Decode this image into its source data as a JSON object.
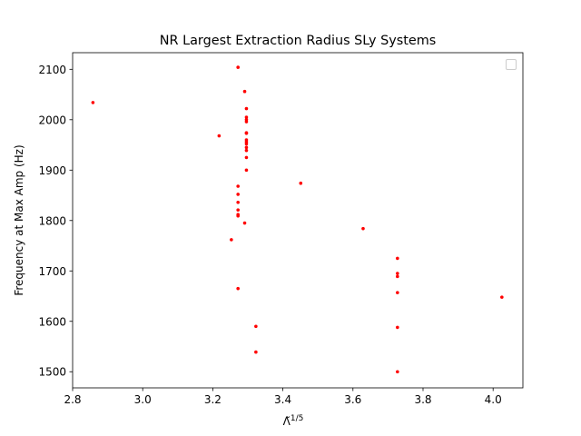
{
  "chart_data": {
    "type": "scatter",
    "title": "NR Largest Extraction Radius SLy Systems",
    "xlabel_base": "Λ̃",
    "xlabel_exponent": "1/5",
    "ylabel": "Frequency at Max Amp (Hz)",
    "xlim": [
      2.8,
      4.085
    ],
    "ylim": [
      1468,
      2133
    ],
    "xticks": [
      "2.8",
      "3.0",
      "3.2",
      "3.4",
      "3.6",
      "3.8",
      "4.0"
    ],
    "yticks": [
      "1500",
      "1600",
      "1700",
      "1800",
      "1900",
      "2000",
      "2100"
    ],
    "grid": false,
    "legend": {
      "location": "top-right",
      "entries": []
    },
    "marker_color": "#ff0000",
    "series": [
      {
        "points": [
          [
            2.858,
            2034
          ],
          [
            3.218,
            1968
          ],
          [
            3.253,
            1762
          ],
          [
            3.272,
            2104
          ],
          [
            3.272,
            1868
          ],
          [
            3.272,
            1852
          ],
          [
            3.272,
            1836
          ],
          [
            3.272,
            1821
          ],
          [
            3.272,
            1812
          ],
          [
            3.272,
            1809
          ],
          [
            3.272,
            1665
          ],
          [
            3.291,
            2056
          ],
          [
            3.291,
            1795
          ],
          [
            3.296,
            2022
          ],
          [
            3.296,
            2005
          ],
          [
            3.296,
            2000
          ],
          [
            3.296,
            1996
          ],
          [
            3.296,
            1974
          ],
          [
            3.296,
            1973
          ],
          [
            3.296,
            1960
          ],
          [
            3.296,
            1956
          ],
          [
            3.296,
            1952
          ],
          [
            3.296,
            1945
          ],
          [
            3.296,
            1939
          ],
          [
            3.296,
            1925
          ],
          [
            3.296,
            1900
          ],
          [
            3.323,
            1590
          ],
          [
            3.323,
            1539
          ],
          [
            3.451,
            1874
          ],
          [
            3.629,
            1784
          ],
          [
            3.727,
            1725
          ],
          [
            3.727,
            1695
          ],
          [
            3.727,
            1689
          ],
          [
            3.727,
            1657
          ],
          [
            3.727,
            1588
          ],
          [
            3.727,
            1500
          ],
          [
            4.025,
            1648
          ]
        ]
      }
    ]
  }
}
